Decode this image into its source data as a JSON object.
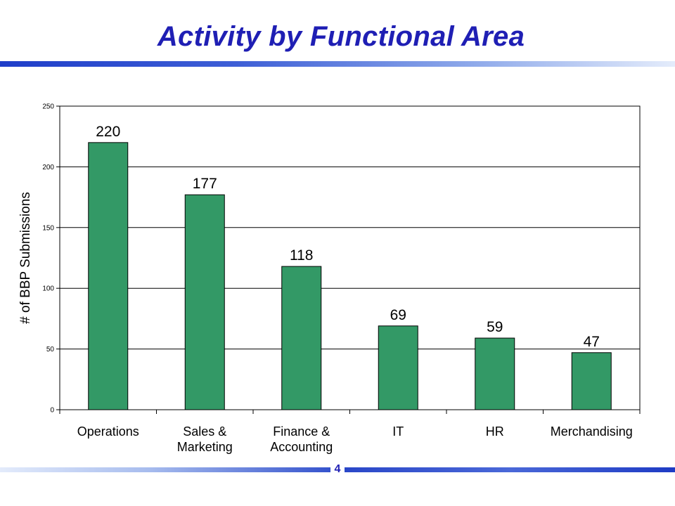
{
  "slide": {
    "title": "Activity by Functional Area",
    "page_number": "4"
  },
  "colors": {
    "bar_fill": "#339966",
    "bar_stroke": "#000000",
    "title": "#1f1fb4",
    "accent_blue": "#1f3ec9"
  },
  "chart_data": {
    "type": "bar",
    "categories": [
      [
        "Operations"
      ],
      [
        "Sales &",
        "Marketing"
      ],
      [
        "Finance &",
        "Accounting"
      ],
      [
        "IT"
      ],
      [
        "HR"
      ],
      [
        "Merchandising"
      ]
    ],
    "values": [
      220,
      177,
      118,
      69,
      59,
      47
    ],
    "data_labels": [
      "220",
      "177",
      "118",
      "69",
      "59",
      "47"
    ],
    "title": "",
    "xlabel": "",
    "ylabel": "# of BBP Submissions",
    "ylim": [
      0,
      250
    ],
    "yticks": [
      0,
      50,
      100,
      150,
      200,
      250
    ],
    "grid": true,
    "legend": "none"
  }
}
